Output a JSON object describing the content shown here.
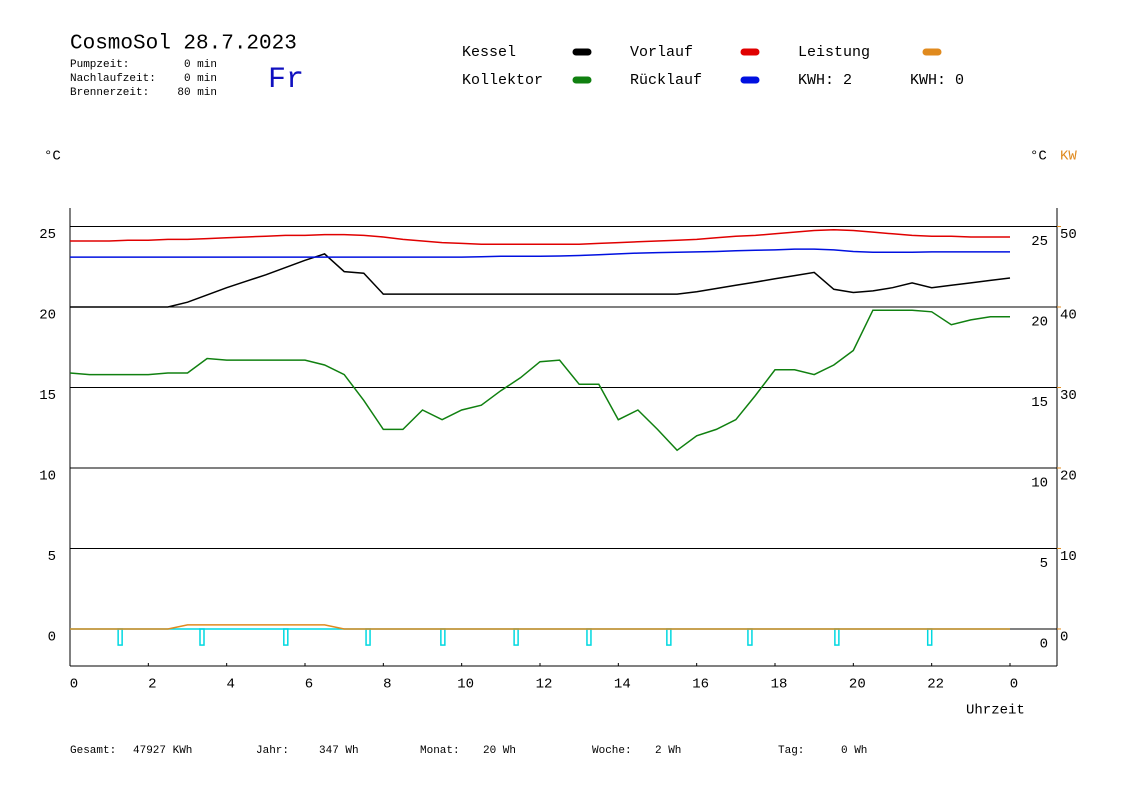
{
  "chart_data": {
    "type": "line",
    "title": "CosmoSol 28.7.2023",
    "info": [
      [
        "Pumpzeit:",
        "0 min"
      ],
      [
        "Nachlaufzeit:",
        "0 min"
      ],
      [
        "Brennerzeit:",
        "80 min"
      ]
    ],
    "weekday": "Fr",
    "y_label": "°C",
    "y2_labels": [
      "°C",
      "KW"
    ],
    "x_label": "Uhrzeit",
    "kwh": [
      {
        "label": "KWH: 2",
        "color": "#e08a1e"
      },
      {
        "label": "KWH: 0",
        "color": "#8a3a9a"
      }
    ],
    "footer": [
      [
        "Gesamt:",
        "47927 KWh"
      ],
      [
        "Jahr:",
        "347 Wh"
      ],
      [
        "Monat:",
        "20 Wh"
      ],
      [
        "Woche:",
        "2 Wh"
      ],
      [
        "Tag:",
        "0 Wh"
      ]
    ],
    "x": [
      0,
      0.5,
      1,
      1.5,
      2,
      2.5,
      3,
      3.5,
      4,
      4.5,
      5,
      5.5,
      6,
      6.5,
      7,
      7.5,
      8,
      8.5,
      9,
      9.5,
      10,
      10.5,
      11,
      11.5,
      12,
      12.5,
      13,
      13.5,
      14,
      14.5,
      15,
      15.5,
      16,
      16.5,
      17,
      17.5,
      18,
      18.5,
      19,
      19.5,
      20,
      20.5,
      21,
      21.5,
      22,
      22.5,
      23,
      23.5,
      24
    ],
    "xlim": [
      0,
      24
    ],
    "xticks": [
      0,
      2,
      4,
      6,
      8,
      10,
      12,
      14,
      16,
      18,
      20,
      22,
      {
        "value": 24,
        "label": "0"
      }
    ],
    "ylim": [
      -2.3,
      26.15
    ],
    "yticks": [
      0,
      5,
      10,
      15,
      20,
      25
    ],
    "y2lim": [
      -4.6,
      52.3
    ],
    "y2ticks": [
      0,
      10,
      20,
      30,
      40,
      50
    ],
    "y2_color": "#e08a1e",
    "grid": true,
    "series": [
      {
        "name": "Kessel",
        "color": "#000000",
        "values": [
          20.0,
          20.0,
          20.0,
          20.0,
          20.0,
          20.0,
          20.3,
          20.75,
          21.2,
          21.6,
          22.0,
          22.45,
          22.9,
          23.3,
          22.2,
          22.1,
          20.8,
          20.8,
          20.8,
          20.8,
          20.8,
          20.8,
          20.8,
          20.8,
          20.8,
          20.8,
          20.8,
          20.8,
          20.8,
          20.8,
          20.8,
          20.8,
          20.95,
          21.15,
          21.35,
          21.55,
          21.75,
          21.95,
          22.15,
          21.1,
          20.9,
          21.0,
          21.2,
          21.5,
          21.2,
          21.35,
          21.5,
          21.65,
          21.8
        ]
      },
      {
        "name": "Vorlauf",
        "color": "#e00000",
        "values": [
          24.1,
          24.1,
          24.1,
          24.15,
          24.15,
          24.2,
          24.2,
          24.25,
          24.3,
          24.35,
          24.4,
          24.45,
          24.45,
          24.5,
          24.5,
          24.45,
          24.35,
          24.2,
          24.1,
          24.0,
          23.95,
          23.9,
          23.9,
          23.9,
          23.9,
          23.9,
          23.9,
          23.95,
          24.0,
          24.05,
          24.1,
          24.15,
          24.2,
          24.3,
          24.4,
          24.45,
          24.55,
          24.65,
          24.75,
          24.8,
          24.75,
          24.65,
          24.55,
          24.45,
          24.4,
          24.4,
          24.35,
          24.35,
          24.35
        ]
      },
      {
        "name": "Leistung",
        "color": "#e08a1e",
        "axis": "y2",
        "values": [
          0,
          0,
          0,
          0,
          0,
          0,
          0.5,
          0.5,
          0.5,
          0.5,
          0.5,
          0.5,
          0.5,
          0.5,
          0,
          0,
          0,
          0,
          0,
          0,
          0,
          0,
          0,
          0,
          0,
          0,
          0,
          0,
          0,
          0,
          0,
          0,
          0,
          0,
          0,
          0,
          0,
          0,
          0,
          0,
          0,
          0,
          0,
          0,
          0,
          0,
          0,
          0,
          0
        ]
      },
      {
        "name": "Kollektor",
        "color": "#108010",
        "values": [
          15.9,
          15.8,
          15.8,
          15.8,
          15.8,
          15.9,
          15.9,
          16.8,
          16.7,
          16.7,
          16.7,
          16.7,
          16.7,
          16.4,
          15.8,
          14.2,
          12.4,
          12.4,
          13.6,
          13.0,
          13.6,
          13.9,
          14.8,
          15.6,
          16.6,
          16.7,
          15.2,
          15.2,
          13.0,
          13.6,
          12.4,
          11.1,
          12.0,
          12.4,
          13.0,
          14.5,
          16.1,
          16.1,
          15.8,
          16.4,
          17.3,
          19.8,
          19.8,
          19.8,
          19.7,
          18.9,
          19.2,
          19.4,
          19.4
        ]
      },
      {
        "name": "Rücklauf",
        "color": "#0010e0",
        "values": [
          23.1,
          23.1,
          23.1,
          23.1,
          23.1,
          23.1,
          23.1,
          23.1,
          23.1,
          23.1,
          23.1,
          23.1,
          23.1,
          23.1,
          23.1,
          23.1,
          23.1,
          23.1,
          23.1,
          23.1,
          23.1,
          23.12,
          23.15,
          23.15,
          23.15,
          23.17,
          23.2,
          23.25,
          23.3,
          23.35,
          23.38,
          23.4,
          23.42,
          23.45,
          23.5,
          23.52,
          23.55,
          23.6,
          23.6,
          23.55,
          23.45,
          23.4,
          23.4,
          23.4,
          23.42,
          23.42,
          23.42,
          23.42,
          23.42
        ]
      }
    ],
    "pulses": {
      "color": "#00d8e0",
      "x": [
        1.28,
        3.37,
        5.51,
        7.61,
        9.52,
        11.39,
        13.25,
        15.29,
        17.36,
        19.58,
        21.95
      ],
      "low": -1
    }
  }
}
